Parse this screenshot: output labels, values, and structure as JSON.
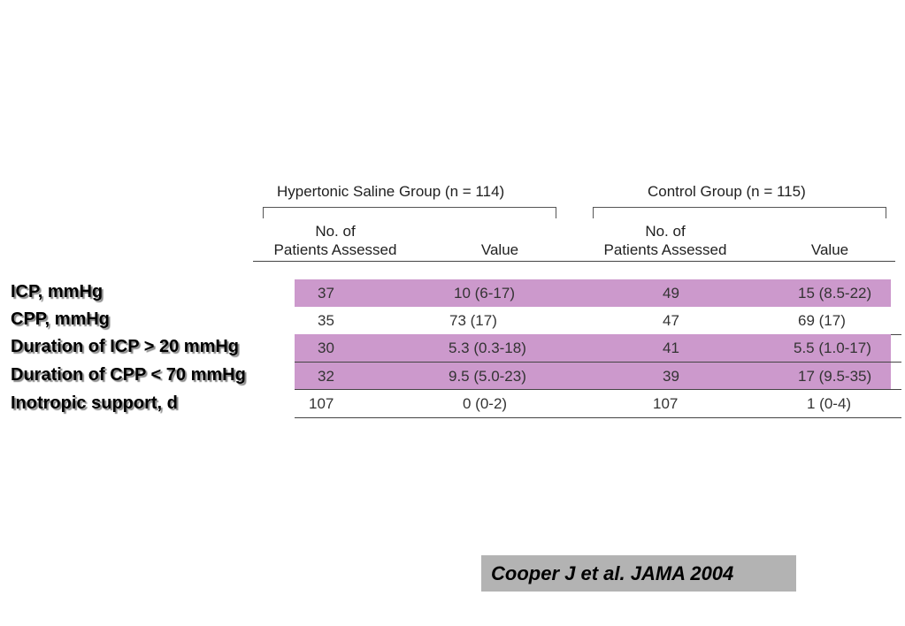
{
  "groups": {
    "saline": "Hypertonic Saline Group (n = 114)",
    "control": "Control Group (n = 115)"
  },
  "columns": {
    "saline_patients_line1": "No. of",
    "saline_patients_line2": "Patients Assessed",
    "saline_value": "Value",
    "control_patients_line1": "No. of",
    "control_patients_line2": "Patients Assessed",
    "control_value": "Value"
  },
  "rows": [
    {
      "label": "ICP, mmHg",
      "saline_n": "37",
      "saline_value": "10 (6-17)",
      "control_n": "49",
      "control_value": "15 (8.5-22)",
      "shaded": true
    },
    {
      "label": "CPP, mmHg",
      "saline_n": "35",
      "saline_value": "73 (17)",
      "control_n": "47",
      "control_value": "69 (17)",
      "shaded": false
    },
    {
      "label": "Duration of ICP > 20 mmHg",
      "saline_n": "30",
      "saline_value": "5.3 (0.3-18)",
      "control_n": "41",
      "control_value": "5.5 (1.0-17)",
      "shaded": true
    },
    {
      "label": "Duration of CPP < 70 mmHg",
      "saline_n": "32",
      "saline_value": "9.5 (5.0-23)",
      "control_n": "39",
      "control_value": "17 (9.5-35)",
      "shaded": true
    },
    {
      "label": "Inotropic support, d",
      "saline_n": "107",
      "saline_value": "0 (0-2)",
      "control_n": "107",
      "control_value": "1 (0-4)",
      "shaded": false
    }
  ],
  "colors": {
    "row_shade": "#cc99cc",
    "citation_bg": "#b3b3b3"
  },
  "citation": "Cooper J et al. JAMA 2004"
}
